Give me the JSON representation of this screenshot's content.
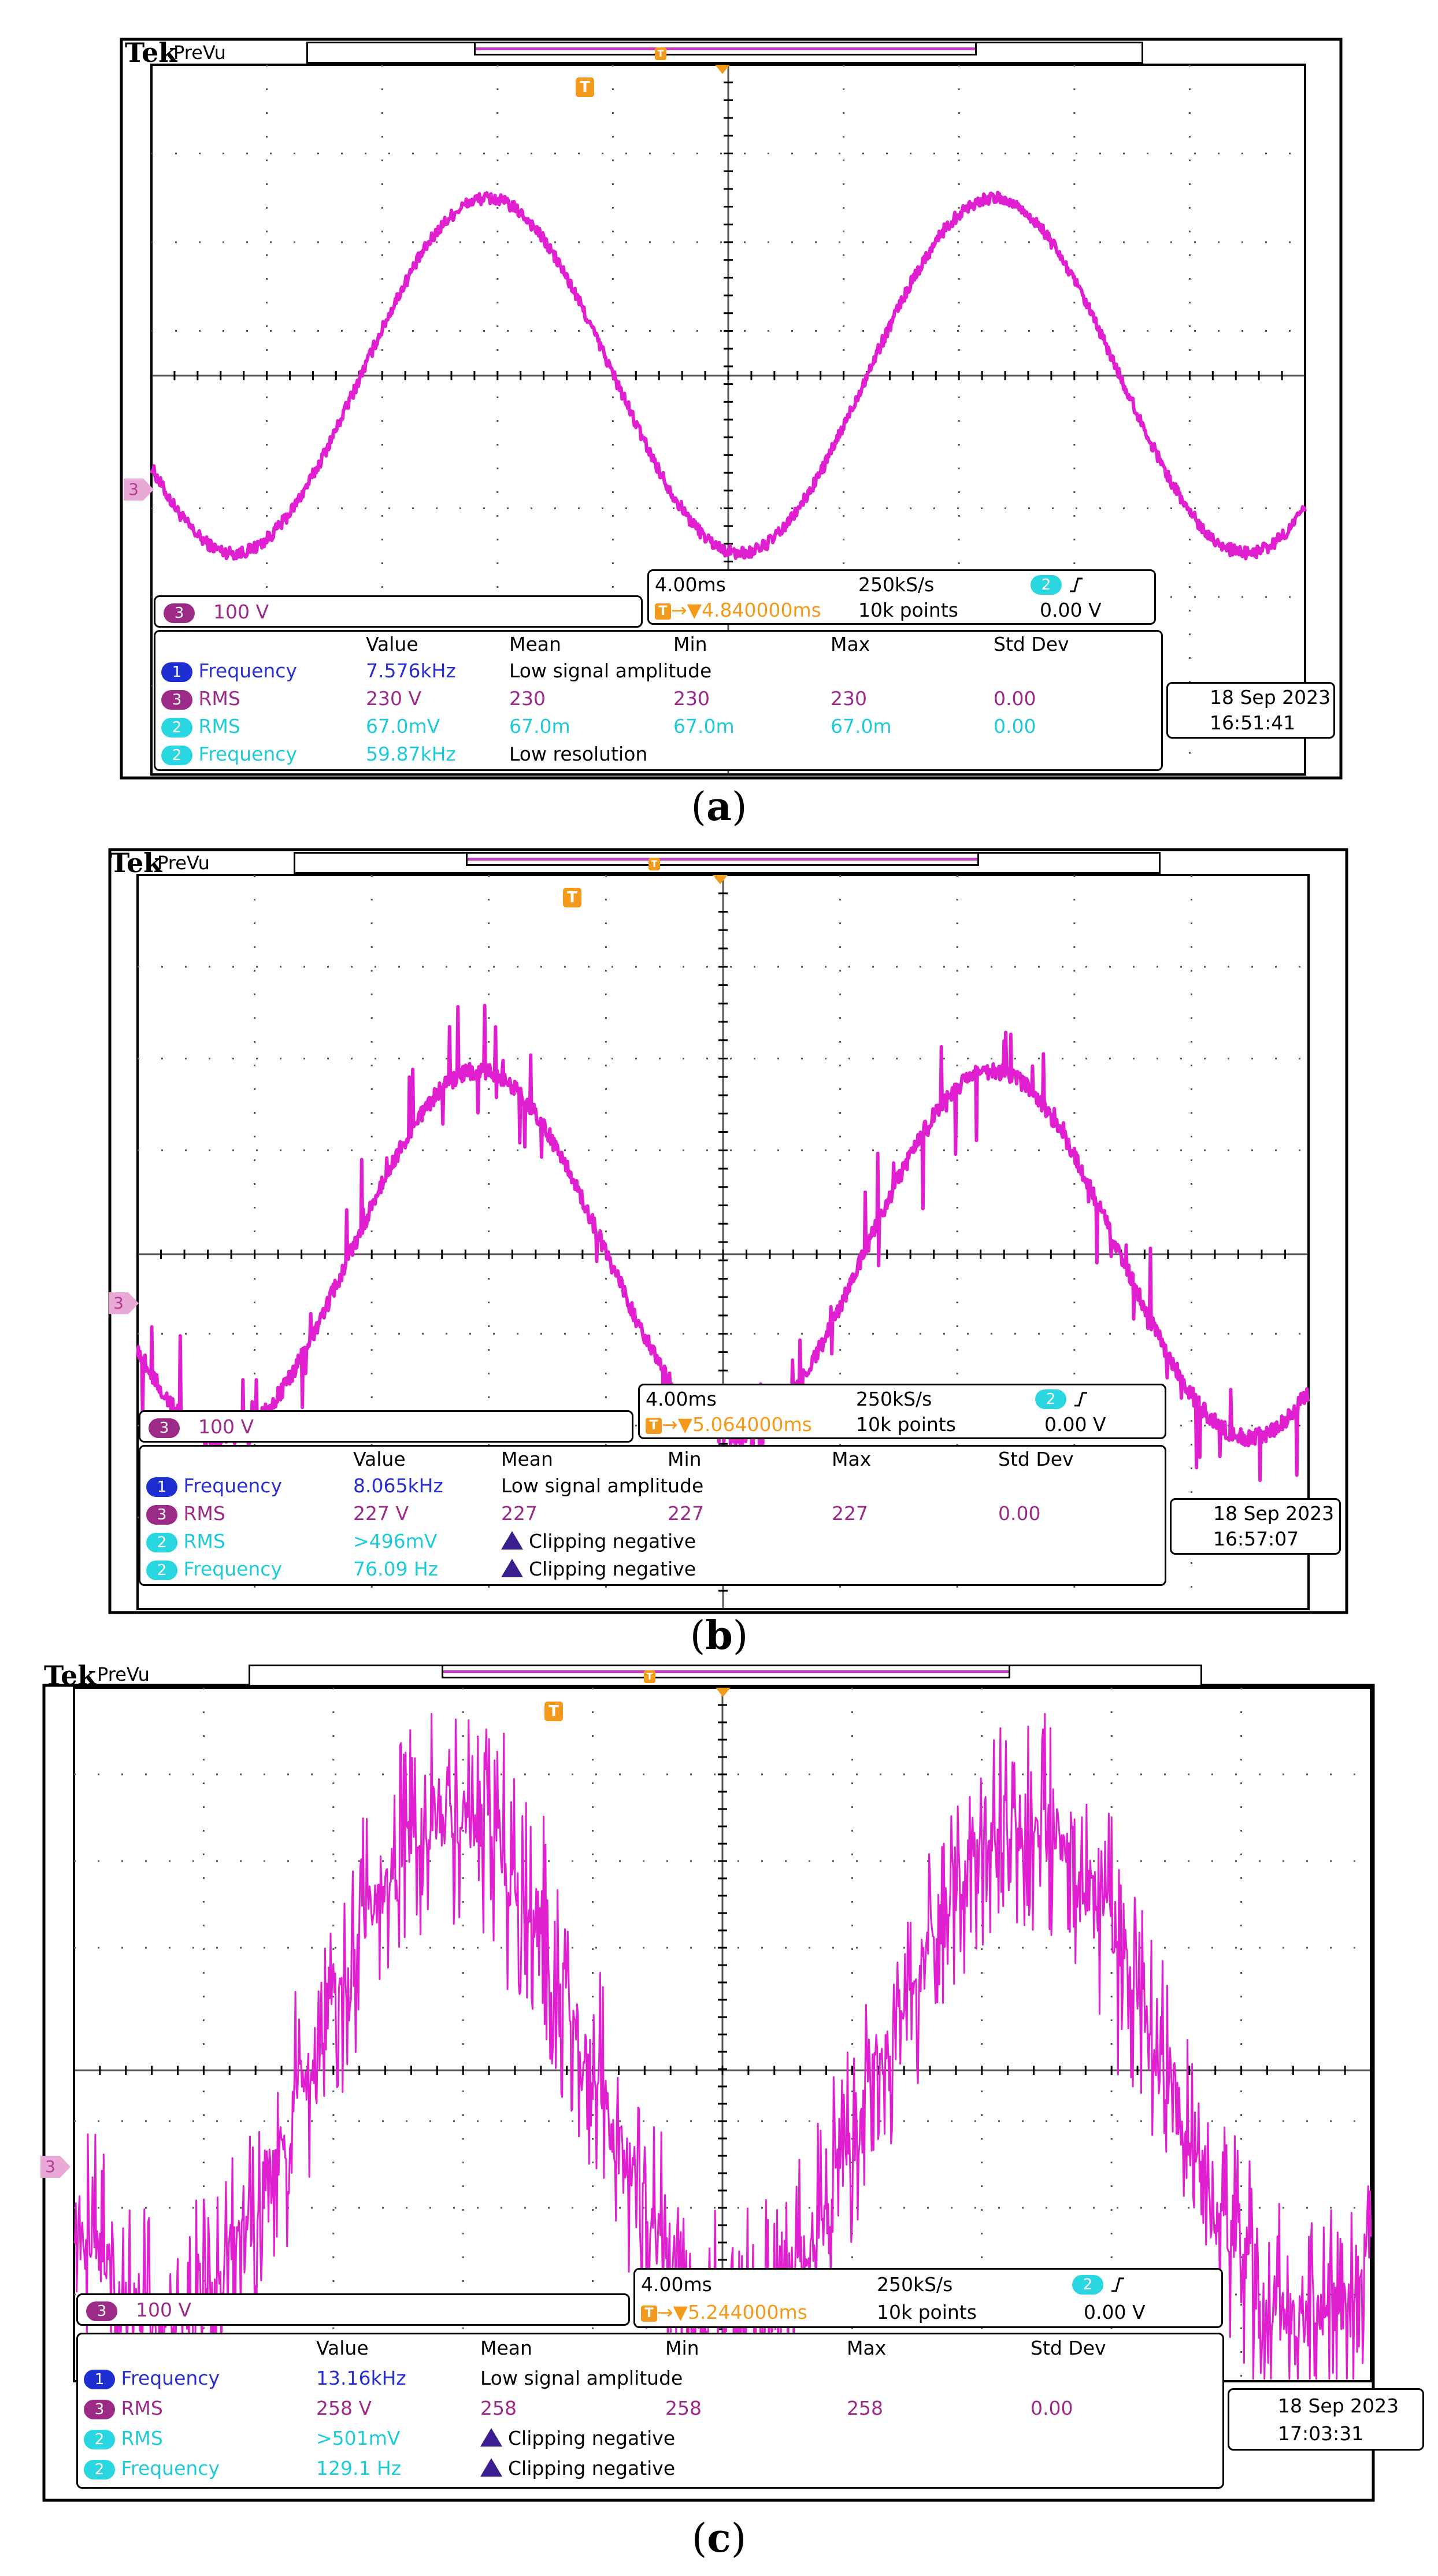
{
  "header": {
    "brand": "Tek",
    "mode": "PreVu"
  },
  "trigger_label": "T",
  "channel_ref": "3",
  "measurement_headers": [
    "Value",
    "Mean",
    "Min",
    "Max",
    "Std Dev"
  ],
  "colors": {
    "trace": "#e020d0",
    "trace_dark": "#8a1a78",
    "ch1": "#1d2fd0",
    "ch2": "#2ad6df",
    "ch3": "#9b2b86",
    "trigger": "#f39a1c"
  },
  "panels": [
    {
      "id": "a",
      "caption_open": "(",
      "caption_letter": "a",
      "caption_close": ")",
      "ch3_scale": "100 V",
      "timebase": "4.00ms",
      "sample_rate": "250kS/s",
      "trigger_ch": "2",
      "trigger_pos": "4.840000ms",
      "record_length": "10k points",
      "trigger_level": "0.00 V",
      "date": "18 Sep  2023",
      "time": "16:51:41",
      "rows": [
        {
          "ch": "1",
          "label": "Frequency",
          "value": "7.576kHz",
          "mean": "Low signal amplitude",
          "min": "",
          "max": "",
          "std": ""
        },
        {
          "ch": "3",
          "label": "RMS",
          "value": "230 V",
          "mean": "230",
          "min": "230",
          "max": "230",
          "std": "0.00"
        },
        {
          "ch": "2",
          "label": "RMS",
          "value": "67.0mV",
          "mean": "67.0m",
          "min": "67.0m",
          "max": "67.0m",
          "std": "0.00"
        },
        {
          "ch": "2",
          "label": "Frequency",
          "value": "59.87kHz",
          "mean": "Low resolution",
          "min": "",
          "max": "",
          "std": ""
        }
      ],
      "waveform": {
        "ch": 3,
        "type": "sine",
        "volts_per_div": 100,
        "time_per_div_ms": 4,
        "peak_v": 200,
        "cycles_on_screen": 2,
        "noise": "low"
      }
    },
    {
      "id": "b",
      "caption_open": "(",
      "caption_letter": "b",
      "caption_close": ")",
      "ch3_scale": "100 V",
      "timebase": "4.00ms",
      "sample_rate": "250kS/s",
      "trigger_ch": "2",
      "trigger_pos": "5.064000ms",
      "record_length": "10k points",
      "trigger_level": "0.00 V",
      "date": "18 Sep  2023",
      "time": "16:57:07",
      "rows": [
        {
          "ch": "1",
          "label": "Frequency",
          "value": "8.065kHz",
          "mean": "Low signal amplitude",
          "min": "",
          "max": "",
          "std": ""
        },
        {
          "ch": "3",
          "label": "RMS",
          "value": "227 V",
          "mean": "227",
          "min": "227",
          "max": "227",
          "std": "0.00"
        },
        {
          "ch": "2",
          "label": "RMS",
          "value": ">496mV",
          "mean": "Clipping negative",
          "warn": true,
          "min": "",
          "max": "",
          "std": ""
        },
        {
          "ch": "2",
          "label": "Frequency",
          "value": "76.09 Hz",
          "mean": "Clipping negative",
          "warn": true,
          "min": "",
          "max": "",
          "std": ""
        }
      ],
      "waveform": {
        "ch": 3,
        "type": "sine-with-spikes",
        "volts_per_div": 100,
        "time_per_div_ms": 4,
        "peak_v": 200,
        "cycles_on_screen": 2,
        "noise": "medium"
      }
    },
    {
      "id": "c",
      "caption_open": "(",
      "caption_letter": "c",
      "caption_close": ")",
      "ch3_scale": "100 V",
      "timebase": "4.00ms",
      "sample_rate": "250kS/s",
      "trigger_ch": "2",
      "trigger_pos": "5.244000ms",
      "record_length": "10k points",
      "trigger_level": "0.00 V",
      "date": "18 Sep  2023",
      "time": "17:03:31",
      "rows": [
        {
          "ch": "1",
          "label": "Frequency",
          "value": "13.16kHz",
          "mean": "Low signal amplitude",
          "min": "",
          "max": "",
          "std": ""
        },
        {
          "ch": "3",
          "label": "RMS",
          "value": "258 V",
          "mean": "258",
          "min": "258",
          "max": "258",
          "std": "0.00"
        },
        {
          "ch": "2",
          "label": "RMS",
          "value": ">501mV",
          "mean": "Clipping negative",
          "warn": true,
          "min": "",
          "max": "",
          "std": ""
        },
        {
          "ch": "2",
          "label": "Frequency",
          "value": "129.1 Hz",
          "mean": "Clipping negative",
          "warn": true,
          "min": "",
          "max": "",
          "std": ""
        }
      ],
      "waveform": {
        "ch": 3,
        "type": "stepped-pwm",
        "volts_per_div": 100,
        "time_per_div_ms": 4,
        "peak_v": 320,
        "cycles_on_screen": 2,
        "noise": "high"
      }
    }
  ]
}
